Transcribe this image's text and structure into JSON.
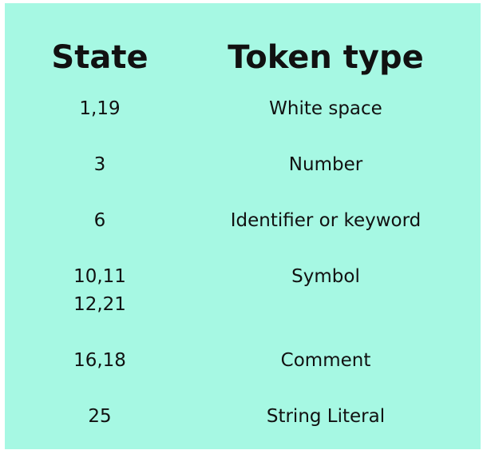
{
  "table": {
    "headers": {
      "state": "State",
      "token_type": "Token type"
    },
    "rows": [
      {
        "state": [
          "1,19"
        ],
        "token_type": "White space"
      },
      {
        "state": [
          "3"
        ],
        "token_type": "Number"
      },
      {
        "state": [
          "6"
        ],
        "token_type": "Identifier or keyword"
      },
      {
        "state": [
          "10,11",
          "12,21"
        ],
        "token_type": "Symbol"
      },
      {
        "state": [
          "16,18"
        ],
        "token_type": "Comment"
      },
      {
        "state": [
          "25"
        ],
        "token_type": "String Literal"
      }
    ]
  },
  "colors": {
    "background": "#a6f8e3",
    "text": "#111111"
  }
}
